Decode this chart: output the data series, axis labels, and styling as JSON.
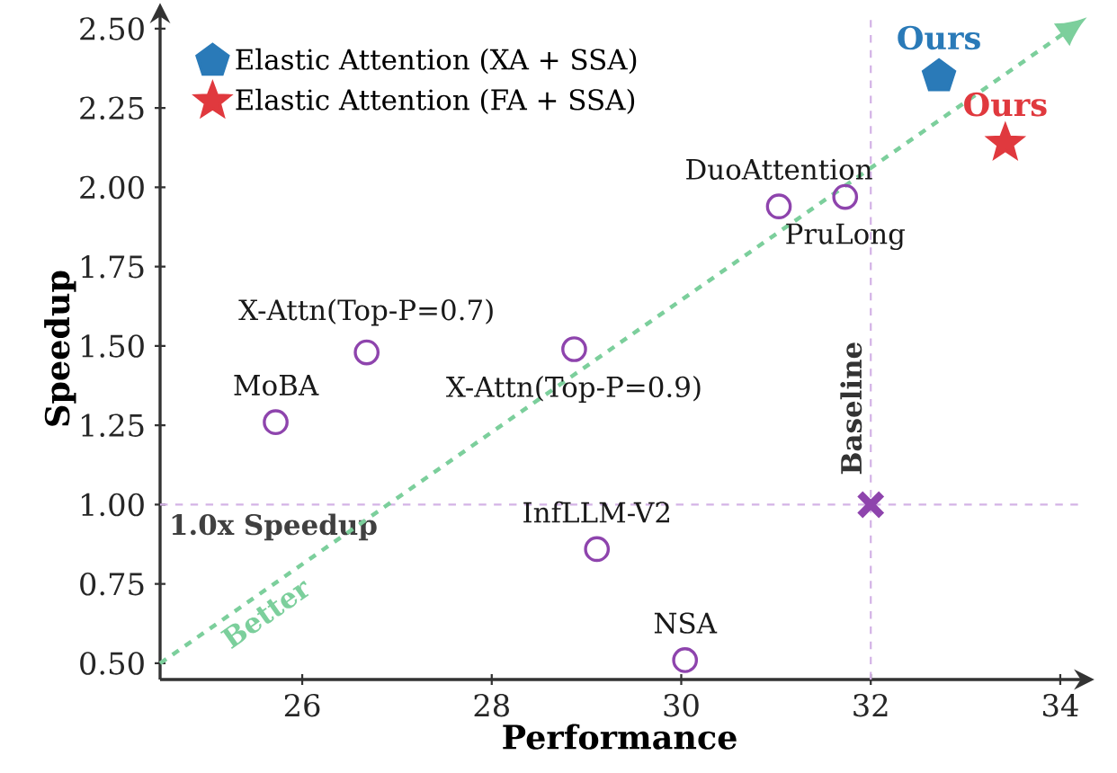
{
  "chart_data": {
    "type": "scatter",
    "xlabel": "Performance",
    "ylabel": "Speedup",
    "xlim": [
      24.5,
      34.2
    ],
    "ylim": [
      0.449,
      2.534
    ],
    "xticks": [
      26,
      28,
      30,
      32,
      34
    ],
    "yticks": [
      {
        "value": 0.5,
        "label": "0.50"
      },
      {
        "value": 0.75,
        "label": "0.75"
      },
      {
        "value": 1.0,
        "label": "1.00"
      },
      {
        "value": 1.25,
        "label": "1.25"
      },
      {
        "value": 1.5,
        "label": "1.50"
      },
      {
        "value": 1.75,
        "label": "1.75"
      },
      {
        "value": 2.0,
        "label": "2.00"
      },
      {
        "value": 2.25,
        "label": "2.25"
      },
      {
        "value": 2.5,
        "label": "2.50"
      }
    ],
    "series": [
      {
        "type": "line",
        "color": "#7ccf9c",
        "line_style": "dashed",
        "marker": "none",
        "x": [
          24.5,
          34.06
        ],
        "values": [
          0.5,
          2.49
        ]
      },
      {
        "color": "#8e44ad",
        "marker": "circle",
        "x": [
          25.72,
          26.68,
          28.87,
          29.11,
          30.04,
          31.03,
          31.73
        ],
        "values": [
          1.26,
          1.48,
          1.49,
          0.86,
          0.51,
          1.94,
          1.97
        ]
      },
      {
        "color": "#8e44ad",
        "marker": "cross",
        "x": [
          32.0
        ],
        "values": [
          1.0
        ]
      },
      {
        "name": "Elastic Attention (XA + SSA)",
        "color": "#2a7ab8",
        "x": [
          32.72
        ],
        "values": [
          2.35
        ]
      },
      {
        "name": "Elastic Attention (FA + SSA)",
        "color": "#e0393e",
        "marker": "star",
        "x": [
          33.42
        ],
        "values": [
          2.14
        ]
      }
    ],
    "ref_lines": [
      {
        "axis": "y",
        "value": 1.0,
        "label": "1.0x Speedup",
        "color": "#d4b3e6",
        "line_style": "dashed"
      },
      {
        "axis": "x",
        "value": 32,
        "label": "Baseline",
        "color": "#d4b3e6",
        "line_style": "dashed"
      }
    ],
    "annotations": [
      {
        "text": "MoBA",
        "x": 25.72,
        "y": 1.26
      },
      {
        "text": "X-Attn(Top-P=0.7)",
        "x": 26.68,
        "y": 1.48
      },
      {
        "text": "X-Attn(Top-P=0.9)",
        "x": 28.87,
        "y": 1.49
      },
      {
        "text": "InfLLM-V2",
        "x": 29.11,
        "y": 0.86
      },
      {
        "text": "NSA",
        "x": 30.04,
        "y": 0.51
      },
      {
        "text": "DuoAttention",
        "x": 31.03,
        "y": 1.94
      },
      {
        "text": "PruLong",
        "x": 31.73,
        "y": 1.97
      },
      {
        "text": "Ours",
        "x": 32.72,
        "y": 2.35
      },
      {
        "text": "Ours",
        "x": 33.42,
        "y": 2.14
      },
      {
        "text": "Better",
        "x": 25.5,
        "y": 0.708
      }
    ],
    "legend": "top left",
    "grid": false
  }
}
